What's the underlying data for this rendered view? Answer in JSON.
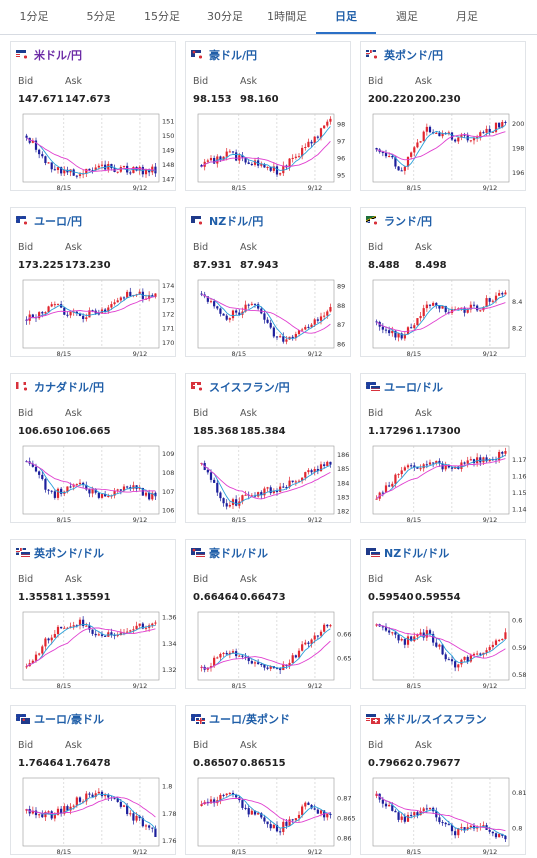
{
  "tabs": [
    {
      "label": "1分足"
    },
    {
      "label": "5分足"
    },
    {
      "label": "15分足"
    },
    {
      "label": "30分足"
    },
    {
      "label": "1時間足"
    },
    {
      "label": "日足",
      "active": true
    },
    {
      "label": "週足"
    },
    {
      "label": "月足"
    }
  ],
  "labels": {
    "bid": "Bid",
    "ask": "Ask"
  },
  "pairs": [
    {
      "name": "米ドル/円",
      "visited": true,
      "flags": [
        "us",
        "jp"
      ],
      "bid": "147.671",
      "ask": "147.673",
      "chart": {
        "type": "candlestick",
        "y_ticks": [
          "151",
          "150",
          "149",
          "148",
          "147"
        ],
        "x_ticks": [
          "8/15",
          "9/12"
        ],
        "trend": [
          150.0,
          147.6,
          147.4,
          147.8,
          147.6,
          147.6
        ],
        "ylim": [
          146.8,
          151.5
        ]
      }
    },
    {
      "name": "豪ドル/円",
      "flags": [
        "au",
        "jp"
      ],
      "bid": "98.153",
      "ask": "98.160",
      "chart": {
        "type": "candlestick",
        "y_ticks": [
          "98",
          "97",
          "96",
          "95"
        ],
        "x_ticks": [
          "8/15",
          "9/12"
        ],
        "trend": [
          95.6,
          96.2,
          95.8,
          95.2,
          96.6,
          98.2
        ],
        "ylim": [
          94.6,
          98.6
        ]
      }
    },
    {
      "name": "英ポンド/円",
      "flags": [
        "uk",
        "jp"
      ],
      "bid": "200.220",
      "ask": "200.230",
      "chart": {
        "type": "candlestick",
        "y_ticks": [
          "200",
          "198",
          "196"
        ],
        "x_ticks": [
          "8/15",
          "9/12"
        ],
        "trend": [
          198.0,
          196.2,
          199.6,
          198.8,
          199.0,
          200.2
        ],
        "ylim": [
          195.2,
          200.8
        ]
      }
    },
    {
      "name": "ユーロ/円",
      "flags": [
        "eu",
        "jp"
      ],
      "bid": "173.225",
      "ask": "173.230",
      "chart": {
        "type": "candlestick",
        "y_ticks": [
          "174",
          "173",
          "172",
          "171",
          "170"
        ],
        "x_ticks": [
          "8/15",
          "9/12"
        ],
        "trend": [
          171.6,
          172.6,
          171.8,
          172.4,
          173.4,
          173.2
        ],
        "ylim": [
          169.6,
          174.4
        ]
      }
    },
    {
      "name": "NZドル/円",
      "flags": [
        "nz",
        "jp"
      ],
      "bid": "87.931",
      "ask": "87.943",
      "chart": {
        "type": "candlestick",
        "y_ticks": [
          "89",
          "88",
          "87",
          "86"
        ],
        "x_ticks": [
          "8/15",
          "9/12"
        ],
        "trend": [
          88.6,
          87.4,
          88.0,
          86.2,
          86.8,
          87.9
        ],
        "ylim": [
          85.8,
          89.3
        ]
      }
    },
    {
      "name": "ランド/円",
      "flags": [
        "za",
        "jp"
      ],
      "bid": "8.488",
      "ask": "8.498",
      "chart": {
        "type": "candlestick",
        "y_ticks": [
          "8.4",
          "8.2"
        ],
        "x_ticks": [
          "8/15",
          "9/12"
        ],
        "trend": [
          8.25,
          8.12,
          8.38,
          8.32,
          8.36,
          8.49
        ],
        "ylim": [
          8.05,
          8.56
        ]
      }
    },
    {
      "name": "カナダドル/円",
      "flags": [
        "ca",
        "jp"
      ],
      "bid": "106.650",
      "ask": "106.665",
      "chart": {
        "type": "candlestick",
        "y_ticks": [
          "109",
          "108",
          "107",
          "106"
        ],
        "x_ticks": [
          "8/15",
          "9/12"
        ],
        "trend": [
          108.6,
          106.8,
          107.4,
          106.6,
          107.2,
          106.65
        ],
        "ylim": [
          105.8,
          109.4
        ]
      }
    },
    {
      "name": "スイスフラン/円",
      "flags": [
        "ch",
        "jp"
      ],
      "bid": "185.368",
      "ask": "185.384",
      "chart": {
        "type": "candlestick",
        "y_ticks": [
          "186",
          "185",
          "184",
          "183",
          "182"
        ],
        "x_ticks": [
          "8/15",
          "9/12"
        ],
        "trend": [
          185.4,
          182.4,
          183.2,
          183.6,
          184.6,
          185.4
        ],
        "ylim": [
          181.8,
          186.6
        ]
      }
    },
    {
      "name": "ユーロ/ドル",
      "flags": [
        "eu",
        "us"
      ],
      "bid": "1.17296",
      "ask": "1.17300",
      "chart": {
        "type": "candlestick",
        "y_ticks": [
          "1.17",
          "1.16",
          "1.15",
          "1.14"
        ],
        "x_ticks": [
          "8/15",
          "9/12"
        ],
        "trend": [
          1.146,
          1.163,
          1.168,
          1.165,
          1.17,
          1.173
        ],
        "ylim": [
          1.137,
          1.178
        ]
      }
    },
    {
      "name": "英ポンド/ドル",
      "flags": [
        "uk",
        "us"
      ],
      "bid": "1.35581",
      "ask": "1.35591",
      "chart": {
        "type": "candlestick",
        "y_ticks": [
          "1.36",
          "1.34",
          "1.32"
        ],
        "x_ticks": [
          "8/15",
          "9/12"
        ],
        "trend": [
          1.322,
          1.348,
          1.356,
          1.345,
          1.35,
          1.356
        ],
        "ylim": [
          1.312,
          1.364
        ]
      }
    },
    {
      "name": "豪ドル/ドル",
      "flags": [
        "au",
        "us"
      ],
      "bid": "0.66464",
      "ask": "0.66473",
      "chart": {
        "type": "candlestick",
        "y_ticks": [
          "0.66",
          "0.65"
        ],
        "x_ticks": [
          "8/15",
          "9/12"
        ],
        "trend": [
          0.646,
          0.652,
          0.649,
          0.645,
          0.655,
          0.665
        ],
        "ylim": [
          0.641,
          0.669
        ]
      }
    },
    {
      "name": "NZドル/ドル",
      "flags": [
        "nz",
        "us"
      ],
      "bid": "0.59540",
      "ask": "0.59554",
      "chart": {
        "type": "candlestick",
        "y_ticks": [
          "0.6",
          "0.59",
          "0.58"
        ],
        "x_ticks": [
          "8/15",
          "9/12"
        ],
        "trend": [
          0.598,
          0.592,
          0.595,
          0.583,
          0.588,
          0.595
        ],
        "ylim": [
          0.578,
          0.603
        ]
      }
    },
    {
      "name": "ユーロ/豪ドル",
      "flags": [
        "eu",
        "au"
      ],
      "bid": "1.76464",
      "ask": "1.76478",
      "chart": {
        "type": "candlestick",
        "y_ticks": [
          "1.8",
          "1.78",
          "1.76"
        ],
        "x_ticks": [
          "8/15",
          "9/12"
        ],
        "trend": [
          1.782,
          1.778,
          1.79,
          1.796,
          1.78,
          1.764
        ],
        "ylim": [
          1.756,
          1.806
        ]
      }
    },
    {
      "name": "ユーロ/英ポンド",
      "flags": [
        "eu",
        "uk"
      ],
      "bid": "0.86507",
      "ask": "0.86515",
      "chart": {
        "type": "candlestick",
        "y_ticks": [
          "0.87",
          "0.865",
          "0.86"
        ],
        "x_ticks": [
          "8/15",
          "9/12"
        ],
        "trend": [
          0.868,
          0.871,
          0.866,
          0.862,
          0.868,
          0.865
        ],
        "ylim": [
          0.858,
          0.875
        ]
      }
    },
    {
      "name": "米ドル/スイスフラン",
      "flags": [
        "us",
        "ch"
      ],
      "bid": "0.79662",
      "ask": "0.79677",
      "chart": {
        "type": "candlestick",
        "y_ticks": [
          "0.81",
          "0.8"
        ],
        "x_ticks": [
          "8/15",
          "9/12"
        ],
        "trend": [
          0.809,
          0.802,
          0.805,
          0.799,
          0.801,
          0.797
        ],
        "ylim": [
          0.795,
          0.814
        ]
      }
    }
  ]
}
